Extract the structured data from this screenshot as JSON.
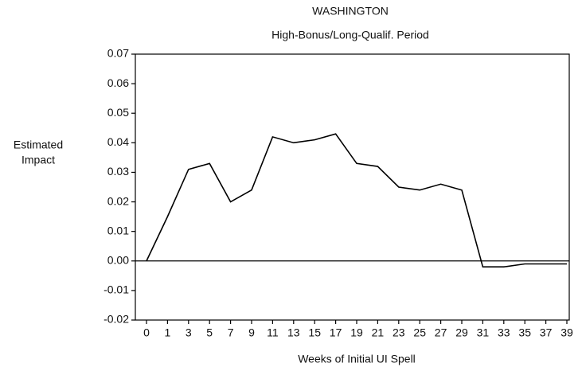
{
  "chart_data": {
    "type": "line",
    "title": "WASHINGTON",
    "subtitle": "High-Bonus/Long-Qualif. Period",
    "ylabel": [
      "Estimated",
      "Impact"
    ],
    "xlabel": "Weeks of Initial UI Spell",
    "categories": [
      "0",
      "1",
      "3",
      "5",
      "7",
      "9",
      "11",
      "13",
      "15",
      "17",
      "19",
      "21",
      "23",
      "25",
      "27",
      "29",
      "31",
      "33",
      "35",
      "37",
      "39"
    ],
    "series": [
      {
        "name": null,
        "color": "#000000",
        "values": [
          0.0,
          0.015,
          0.031,
          0.033,
          0.02,
          0.024,
          0.042,
          0.04,
          0.041,
          0.043,
          0.033,
          0.032,
          0.025,
          0.024,
          0.026,
          0.024,
          -0.002,
          -0.002,
          -0.001,
          -0.001,
          -0.001
        ]
      }
    ],
    "ylim": [
      -0.02,
      0.07
    ],
    "yticks": [
      -0.02,
      -0.01,
      {
        "value": 0,
        "label": "0.00"
      },
      0.01,
      0.02,
      0.03,
      0.04,
      0.05,
      0.06,
      0.07
    ],
    "zero_line": true
  }
}
